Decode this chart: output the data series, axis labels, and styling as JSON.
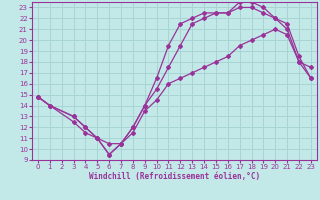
{
  "xlabel": "Windchill (Refroidissement éolien,°C)",
  "bg_color": "#c2e8e8",
  "grid_color": "#a8d4d4",
  "line_color": "#993399",
  "xlim": [
    -0.5,
    23.5
  ],
  "ylim": [
    9,
    23.5
  ],
  "xticks": [
    0,
    1,
    2,
    3,
    4,
    5,
    6,
    7,
    8,
    9,
    10,
    11,
    12,
    13,
    14,
    15,
    16,
    17,
    18,
    19,
    20,
    21,
    22,
    23
  ],
  "yticks": [
    9,
    10,
    11,
    12,
    13,
    14,
    15,
    16,
    17,
    18,
    19,
    20,
    21,
    22,
    23
  ],
  "line1_x": [
    0,
    1,
    3,
    4,
    5,
    6,
    7,
    8,
    9,
    10,
    11,
    12,
    13,
    14,
    15,
    16,
    17,
    18,
    19,
    20,
    21,
    22,
    23
  ],
  "line1_y": [
    14.8,
    14.0,
    12.5,
    11.5,
    11.0,
    10.5,
    10.5,
    11.5,
    13.5,
    14.5,
    16.0,
    16.5,
    17.0,
    17.5,
    18.0,
    18.5,
    19.5,
    20.0,
    20.5,
    21.0,
    20.5,
    18.0,
    16.5
  ],
  "line2_x": [
    0,
    1,
    3,
    4,
    5,
    6,
    7,
    8,
    9,
    10,
    11,
    12,
    13,
    14,
    15,
    16,
    17,
    18,
    19,
    20,
    21,
    22,
    23
  ],
  "line2_y": [
    14.8,
    14.0,
    13.0,
    12.0,
    11.0,
    9.5,
    10.5,
    12.0,
    14.0,
    15.5,
    17.5,
    19.5,
    21.5,
    22.0,
    22.5,
    22.5,
    23.0,
    23.0,
    22.5,
    22.0,
    21.0,
    18.0,
    17.5
  ],
  "line3_x": [
    0,
    1,
    3,
    4,
    5,
    6,
    7,
    8,
    9,
    10,
    11,
    12,
    13,
    14,
    15,
    16,
    17,
    18,
    19,
    20,
    21,
    22,
    23
  ],
  "line3_y": [
    14.8,
    14.0,
    13.0,
    12.0,
    11.0,
    9.5,
    10.5,
    12.0,
    14.0,
    16.5,
    19.5,
    21.5,
    22.0,
    22.5,
    22.5,
    22.5,
    23.5,
    23.5,
    23.0,
    22.0,
    21.5,
    18.5,
    16.5
  ],
  "line4_x": [
    0,
    23
  ],
  "line4_y": [
    14.8,
    16.5
  ]
}
